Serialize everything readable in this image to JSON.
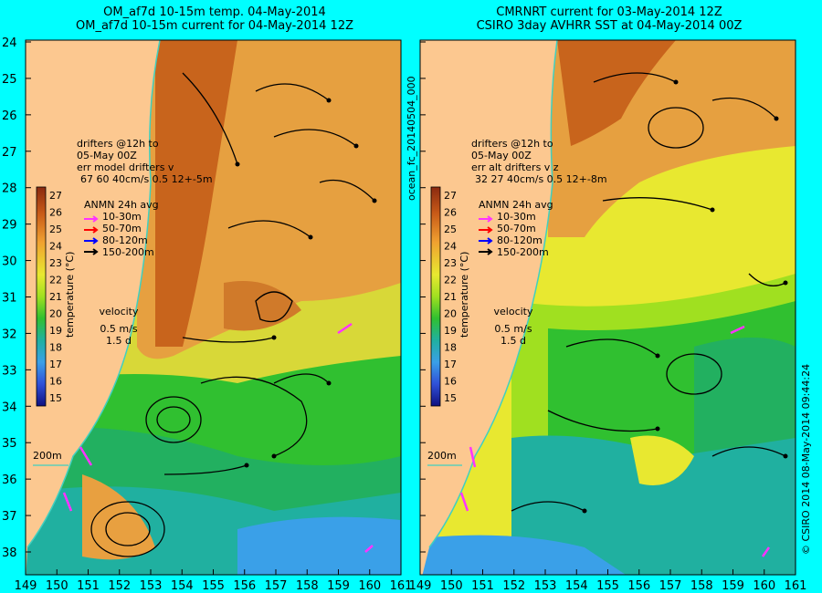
{
  "left_panel": {
    "title_line1": "OM_af7d 10-15m temp. 04-May-2014",
    "title_line2": "OM_af7d 10-15m current for 04-May-2014 12Z",
    "drifter_note": [
      "drifters @12h to",
      "05-May 00Z",
      "err model drifters v",
      "67  60   40cm/s 0.5 12+-5m"
    ],
    "isobath_label": "200m"
  },
  "right_panel": {
    "title_line1": "CMRNRT current for 03-May-2014 12Z",
    "title_line2": "CSIRO 3day AVHRR SST at 04-May-2014 00Z",
    "drifter_note": [
      "drifters @12h to",
      "05-May 00Z",
      "err alt drifters v z",
      "32 27 40cm/s 0.5 12+-8m"
    ],
    "isobath_label": "200m"
  },
  "legend": {
    "ticks": [
      "27",
      "26",
      "25",
      "24",
      "23",
      "22",
      "21",
      "20",
      "19",
      "18",
      "17",
      "16",
      "15"
    ],
    "axis_label": "temperature (°C)",
    "anmn_title": "ANMN 24h avg",
    "depth_bins": [
      {
        "label": "10-30m",
        "color": "#ff33ff"
      },
      {
        "label": "50-70m",
        "color": "#ff0000"
      },
      {
        "label": "80-120m",
        "color": "#0000ff"
      },
      {
        "label": "150-200m",
        "color": "#000000"
      }
    ],
    "velocity_title": "velocity",
    "velocity_speed": "0.5 m/s",
    "velocity_time": "1.5 d"
  },
  "axes": {
    "lat_ticks": [
      "24",
      "25",
      "26",
      "27",
      "28",
      "29",
      "30",
      "31",
      "32",
      "33",
      "34",
      "35",
      "36",
      "37",
      "38"
    ],
    "lon_ticks": [
      "149",
      "150",
      "151",
      "152",
      "153",
      "154",
      "155",
      "156",
      "157",
      "158",
      "159",
      "160",
      "161"
    ]
  },
  "side_text": {
    "left": "ocean_fc_20140504_000",
    "right": "© CSIRO 2014   08-May-2014 09:44:24"
  },
  "colors": {
    "background": "#00ffff",
    "land": "#fcc890",
    "coast": "#40d0c0",
    "warm": "#e08a20",
    "hot": "#b85a18",
    "yellow": "#e8e830",
    "green": "#30c030",
    "teal": "#20b0a0",
    "blue": "#3aa0e8"
  }
}
